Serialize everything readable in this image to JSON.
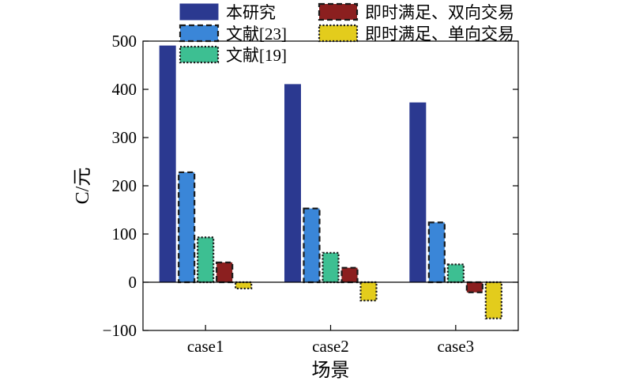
{
  "chart_data": {
    "type": "bar",
    "title": "",
    "xlabel": "场景",
    "ylabel": "C/元",
    "categories": [
      "case1",
      "case2",
      "case3"
    ],
    "ylim": [
      -100,
      500
    ],
    "yticks": [
      -100,
      0,
      100,
      200,
      300,
      400,
      500
    ],
    "ytick_labels": [
      "−100",
      "0",
      "100",
      "200",
      "300",
      "400",
      "500"
    ],
    "grid": false,
    "legend_position": "top",
    "series": [
      {
        "name": "本研究",
        "values": [
          490,
          410,
          372
        ],
        "color": "#2b3990",
        "border": "solid"
      },
      {
        "name": "文献[23]",
        "values": [
          228,
          153,
          124
        ],
        "color": "#3a86d8",
        "border": "dashed"
      },
      {
        "name": "文献[19]",
        "values": [
          93,
          61,
          37
        ],
        "color": "#3dbf92",
        "border": "dotted"
      },
      {
        "name": "即时满足、双向交易",
        "values": [
          41,
          30,
          -21
        ],
        "color": "#8b1f1f",
        "border": "dashed"
      },
      {
        "name": "即时满足、单向交易",
        "values": [
          -13,
          -38,
          -75
        ],
        "color": "#e3cc1c",
        "border": "dotted"
      }
    ]
  }
}
